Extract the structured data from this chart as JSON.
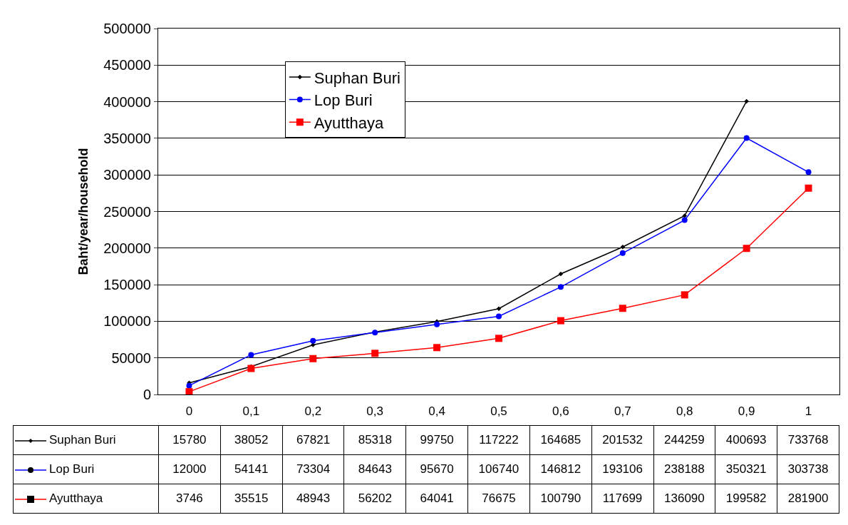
{
  "chart_data": {
    "type": "line",
    "ylabel": "Baht/year/household",
    "categories": [
      "0",
      "0,1",
      "0,2",
      "0,3",
      "0,4",
      "0,5",
      "0,6",
      "0,7",
      "0,8",
      "0,9",
      "1"
    ],
    "series": [
      {
        "name": "Suphan Buri",
        "color": "#000000",
        "marker": "diamond",
        "values": [
          15780,
          38052,
          67821,
          85318,
          99750,
          117222,
          164685,
          201532,
          244259,
          400693,
          null
        ],
        "value_labels": [
          "15780",
          "38052",
          "67821",
          "85318",
          "99750",
          "117222",
          "164685",
          "201532",
          "244259",
          "400693",
          "733768"
        ]
      },
      {
        "name": "Lop Buri",
        "color": "#0000ff",
        "marker": "circle",
        "values": [
          12000,
          54141,
          73304,
          84643,
          95670,
          106740,
          146812,
          193106,
          238188,
          350321,
          303738
        ],
        "value_labels": [
          "12000",
          "54141",
          "73304",
          "84643",
          "95670",
          "106740",
          "146812",
          "193106",
          "238188",
          "350321",
          "303738"
        ]
      },
      {
        "name": "Ayutthaya",
        "color": "#ff0000",
        "marker": "square",
        "values": [
          3746,
          35515,
          48943,
          56202,
          64041,
          76675,
          100790,
          117699,
          136090,
          199582,
          281900
        ],
        "value_labels": [
          "3746",
          "35515",
          "48943",
          "56202",
          "64041",
          "76675",
          "100790",
          "117699",
          "136090",
          "199582",
          "281900"
        ]
      }
    ],
    "ylim": [
      0,
      500000
    ],
    "yticks": [
      0,
      50000,
      100000,
      150000,
      200000,
      250000,
      300000,
      350000,
      400000,
      450000,
      500000
    ],
    "grid": "y",
    "legend": "top left"
  }
}
